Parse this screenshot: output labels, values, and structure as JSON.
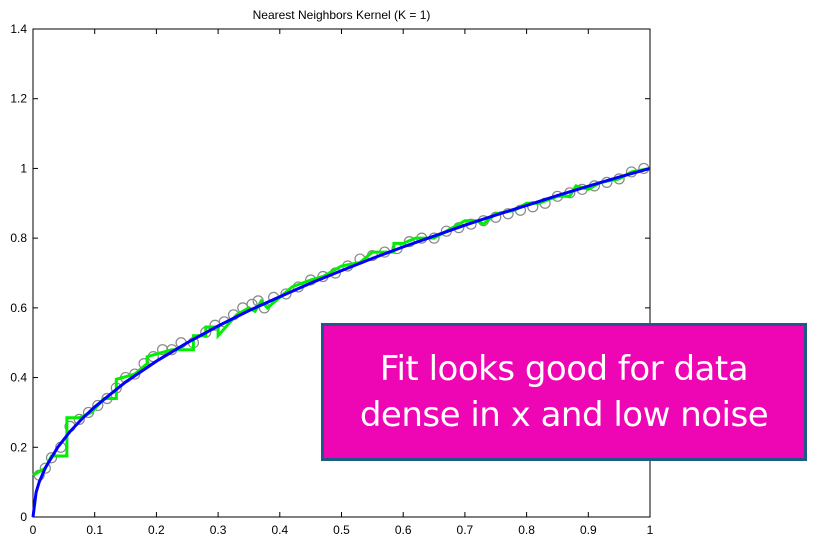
{
  "chart_data": {
    "type": "line",
    "title": "Nearest Neighbors Kernel (K = 1)",
    "xlabel": "",
    "ylabel": "",
    "xlim": [
      0,
      1
    ],
    "ylim": [
      0,
      1.4
    ],
    "xticks": [
      "0",
      "0.1",
      "0.2",
      "0.3",
      "0.4",
      "0.5",
      "0.6",
      "0.7",
      "0.8",
      "0.9",
      "1"
    ],
    "yticks": [
      "0",
      "0.2",
      "0.4",
      "0.6",
      "0.8",
      "1",
      "1.2",
      "1.4"
    ],
    "grid": false,
    "colors": {
      "true_function": "#0000ff",
      "fit": "#00ee00",
      "points": "#888888"
    },
    "series": [
      {
        "role": "true-function",
        "x": [
          0,
          0.005,
          0.01,
          0.02,
          0.04,
          0.06,
          0.08,
          0.1,
          0.15,
          0.2,
          0.25,
          0.3,
          0.35,
          0.4,
          0.45,
          0.5,
          0.55,
          0.6,
          0.65,
          0.7,
          0.75,
          0.8,
          0.85,
          0.9,
          0.95,
          1.0
        ],
        "y": [
          0,
          0.071,
          0.1,
          0.141,
          0.2,
          0.245,
          0.283,
          0.316,
          0.387,
          0.447,
          0.5,
          0.548,
          0.592,
          0.632,
          0.671,
          0.707,
          0.742,
          0.775,
          0.806,
          0.837,
          0.866,
          0.894,
          0.922,
          0.949,
          0.975,
          1.0
        ]
      },
      {
        "role": "knn-fit",
        "x": [
          0.0,
          0.02,
          0.03,
          0.055,
          0.055,
          0.075,
          0.095,
          0.115,
          0.135,
          0.135,
          0.165,
          0.185,
          0.185,
          0.205,
          0.225,
          0.26,
          0.26,
          0.28,
          0.28,
          0.3,
          0.3,
          0.33,
          0.35,
          0.36,
          0.37,
          0.38,
          0.4,
          0.42,
          0.45,
          0.47,
          0.5,
          0.53,
          0.55,
          0.56,
          0.585,
          0.585,
          0.6,
          0.62,
          0.65,
          0.68,
          0.7,
          0.72,
          0.73,
          0.75,
          0.78,
          0.8,
          0.82,
          0.85,
          0.87,
          0.88,
          0.9,
          0.92,
          0.95,
          0.97,
          1.0
        ],
        "y": [
          0.12,
          0.14,
          0.175,
          0.175,
          0.285,
          0.285,
          0.3,
          0.34,
          0.34,
          0.395,
          0.41,
          0.44,
          0.46,
          0.47,
          0.48,
          0.48,
          0.52,
          0.52,
          0.545,
          0.545,
          0.52,
          0.58,
          0.6,
          0.59,
          0.62,
          0.6,
          0.63,
          0.66,
          0.68,
          0.69,
          0.72,
          0.73,
          0.76,
          0.76,
          0.76,
          0.785,
          0.785,
          0.8,
          0.8,
          0.83,
          0.85,
          0.85,
          0.84,
          0.87,
          0.88,
          0.9,
          0.9,
          0.92,
          0.92,
          0.95,
          0.94,
          0.96,
          0.97,
          0.99,
          1.0
        ]
      },
      {
        "role": "data-points",
        "x": [
          0.01,
          0.02,
          0.03,
          0.045,
          0.06,
          0.075,
          0.09,
          0.105,
          0.12,
          0.135,
          0.15,
          0.165,
          0.18,
          0.195,
          0.21,
          0.225,
          0.24,
          0.26,
          0.28,
          0.295,
          0.31,
          0.325,
          0.34,
          0.355,
          0.365,
          0.375,
          0.39,
          0.41,
          0.43,
          0.45,
          0.47,
          0.49,
          0.51,
          0.53,
          0.55,
          0.57,
          0.59,
          0.61,
          0.63,
          0.65,
          0.67,
          0.69,
          0.71,
          0.73,
          0.75,
          0.77,
          0.79,
          0.81,
          0.83,
          0.85,
          0.87,
          0.89,
          0.91,
          0.93,
          0.95,
          0.97,
          0.99
        ],
        "y": [
          0.12,
          0.14,
          0.17,
          0.2,
          0.26,
          0.28,
          0.3,
          0.32,
          0.34,
          0.37,
          0.4,
          0.41,
          0.44,
          0.46,
          0.48,
          0.48,
          0.5,
          0.5,
          0.53,
          0.55,
          0.56,
          0.58,
          0.6,
          0.61,
          0.62,
          0.6,
          0.63,
          0.64,
          0.66,
          0.68,
          0.69,
          0.7,
          0.72,
          0.74,
          0.75,
          0.76,
          0.77,
          0.79,
          0.8,
          0.8,
          0.82,
          0.83,
          0.84,
          0.85,
          0.86,
          0.87,
          0.88,
          0.89,
          0.9,
          0.92,
          0.93,
          0.94,
          0.95,
          0.96,
          0.97,
          0.99,
          1.0
        ]
      }
    ]
  },
  "callout": {
    "text": "Fit looks good for data\ndense in x and low noise",
    "background": "#ee05b4",
    "border": "#1d5a85"
  }
}
